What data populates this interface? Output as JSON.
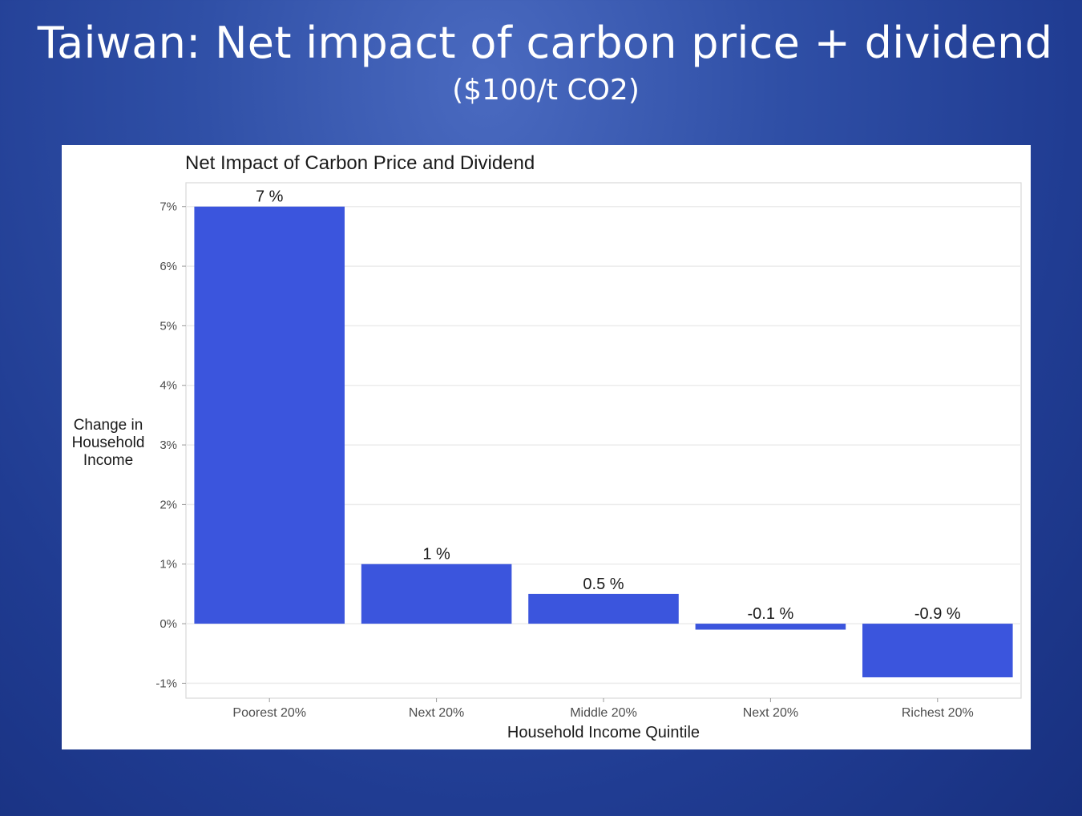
{
  "slide": {
    "title": "Taiwan: Net impact of carbon price + dividend",
    "subtitle": "($100/t CO2)"
  },
  "colors": {
    "bar": "#3b55dd",
    "gridline": "#ececec",
    "axis_text": "#4d4d4d",
    "text": "#1a1a1a"
  },
  "chart_data": {
    "type": "bar",
    "title": "Net Impact of Carbon Price and Dividend",
    "xlabel": "Household Income Quintile",
    "ylabel": [
      "Change in",
      "Household",
      "Income"
    ],
    "categories": [
      "Poorest 20%",
      "Next 20%",
      "Middle 20%",
      "Next 20%",
      "Richest 20%"
    ],
    "values": [
      7,
      1,
      0.5,
      -0.1,
      -0.9
    ],
    "value_labels": [
      "7 %",
      "1 %",
      "0.5 %",
      "-0.1 %",
      "-0.9 %"
    ],
    "ylim": [
      -1.25,
      7.4
    ],
    "yticks": [
      -1,
      0,
      1,
      2,
      3,
      4,
      5,
      6,
      7
    ],
    "ytick_labels": [
      "-1%",
      "0%",
      "1%",
      "2%",
      "3%",
      "4%",
      "5%",
      "6%",
      "7%"
    ],
    "grid": true,
    "legend": "none"
  }
}
